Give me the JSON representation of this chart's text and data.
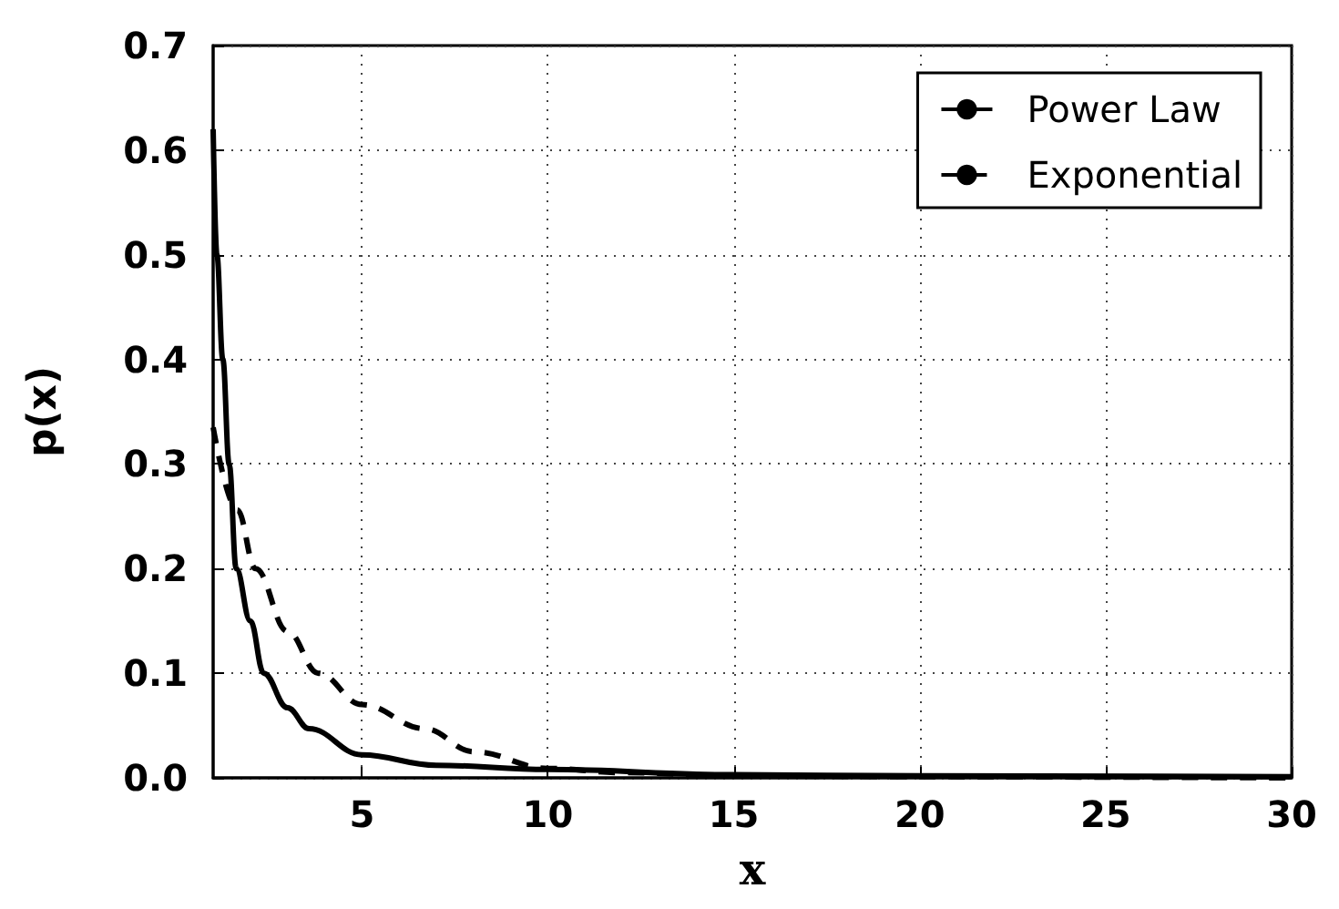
{
  "chart_data": {
    "type": "line",
    "xlabel": "x",
    "ylabel": "p(x)",
    "xlim": [
      1,
      30
    ],
    "xticks": [
      5,
      10,
      15,
      20,
      25,
      30
    ],
    "ylim": [
      0,
      0.7
    ],
    "yticks": [
      {
        "value": 0,
        "label": "0.0"
      },
      0.1,
      0.2,
      0.3,
      0.4,
      0.5,
      0.6,
      0.7
    ],
    "grid": true,
    "legend": "top right",
    "marker": "none",
    "series": [
      {
        "name": "Power Law",
        "color": "#000000",
        "line_style": "solid",
        "x": [
          1,
          1.1,
          1.26,
          1.43,
          1.62,
          2,
          2.36,
          3,
          3.58,
          5,
          7,
          10,
          15,
          20,
          30
        ],
        "values": [
          0.62,
          0.5,
          0.4,
          0.3,
          0.2,
          0.15,
          0.1,
          0.067,
          0.047,
          0.022,
          0.012,
          0.008,
          0.003,
          0.002,
          0.001
        ]
      },
      {
        "name": "Exponential",
        "color": "#000000",
        "line_style": "dashed",
        "x": [
          1,
          1.65,
          2.14,
          3,
          3.83,
          5,
          6.69,
          8,
          10,
          12,
          15,
          20,
          30
        ],
        "values": [
          0.335,
          0.256,
          0.2,
          0.14,
          0.1,
          0.07,
          0.047,
          0.025,
          0.009,
          0.005,
          0.002,
          0.001,
          0
        ]
      }
    ]
  }
}
